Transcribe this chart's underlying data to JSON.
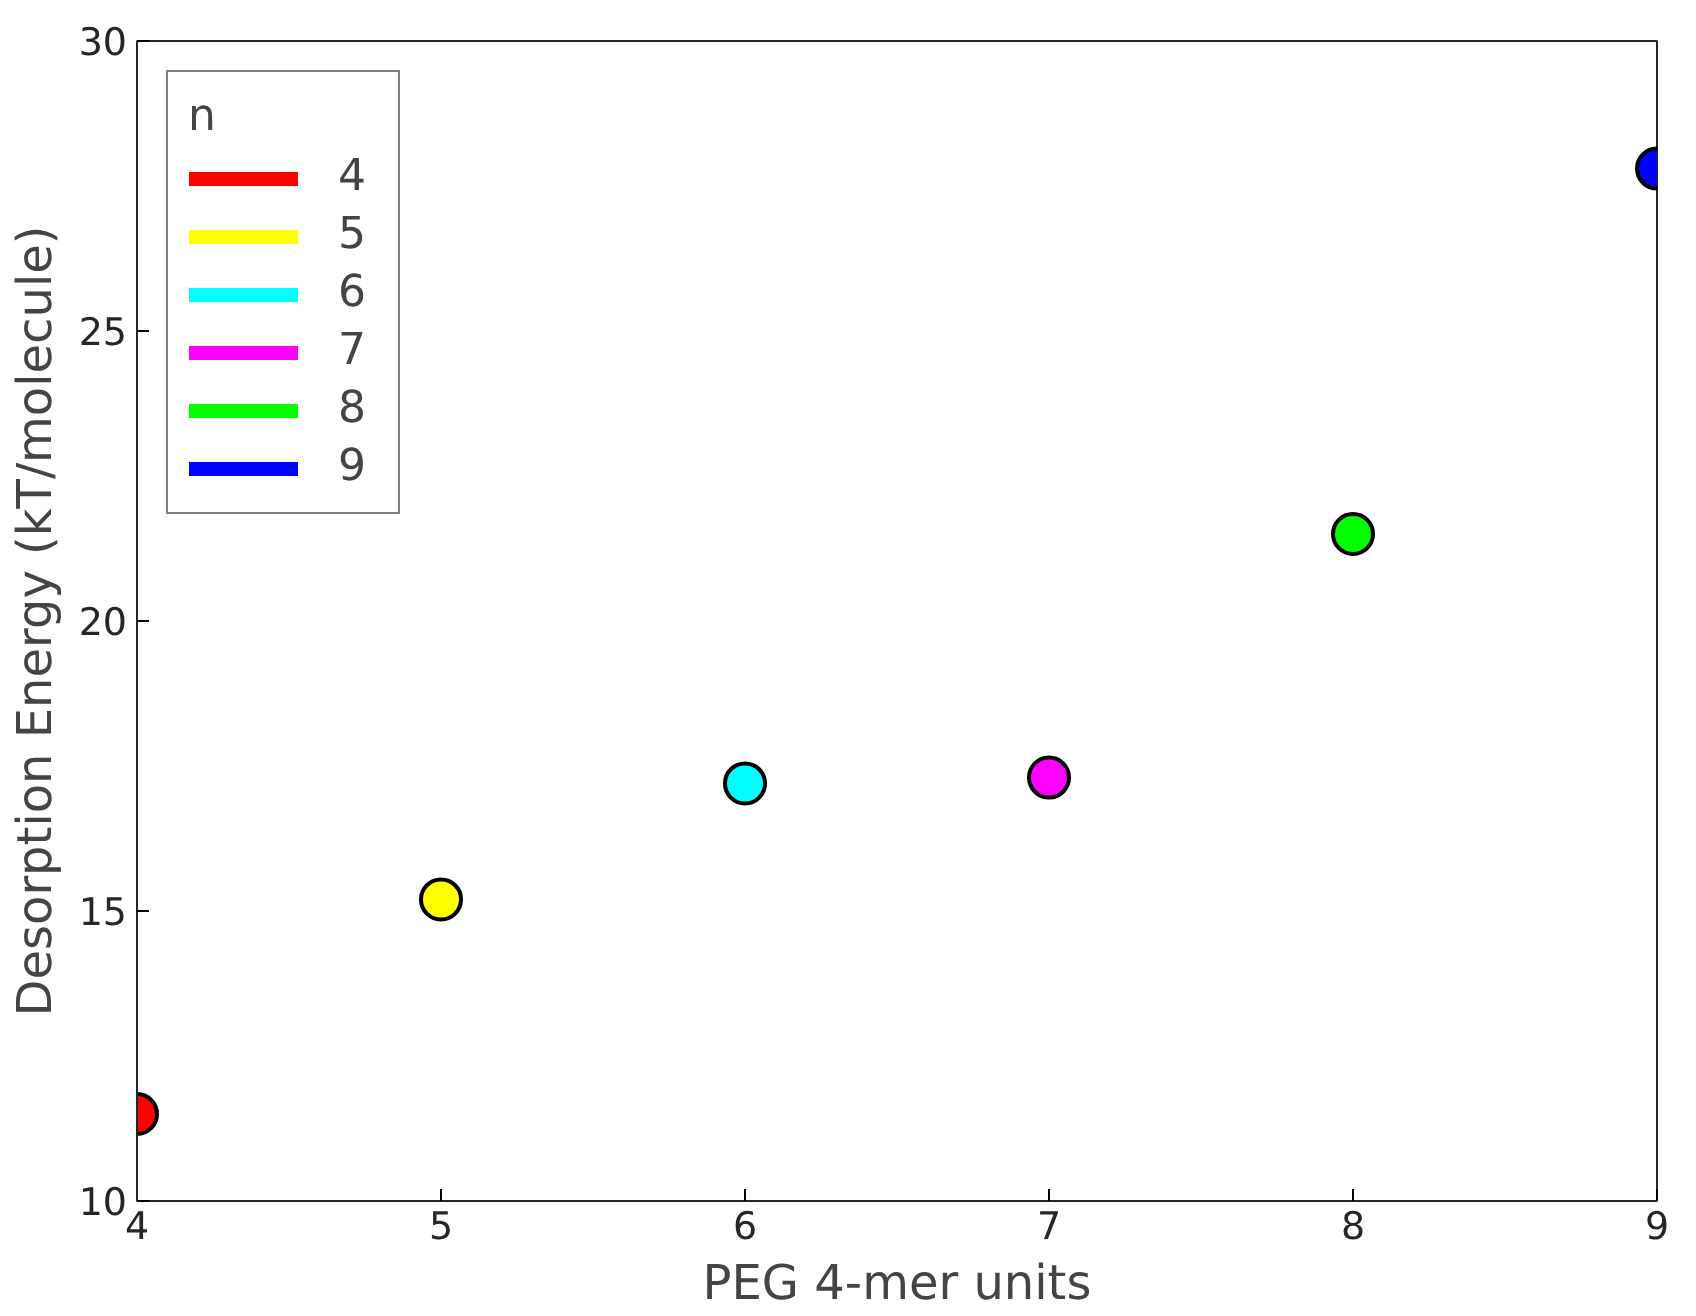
{
  "chart_data": {
    "type": "scatter",
    "xlabel": "PEG 4-mer units",
    "ylabel": "Desorption Energy (kT/molecule)",
    "legend_title": "n",
    "legend": "top left",
    "marker": "circle",
    "grid": false,
    "xlim": [
      4,
      9
    ],
    "xticks": [
      4,
      5,
      6,
      7,
      8,
      9
    ],
    "ylim": [
      10,
      30
    ],
    "yticks": [
      10,
      15,
      20,
      25,
      30
    ],
    "series": [
      {
        "name": "4",
        "color": "#ff0000",
        "x": [
          4
        ],
        "values": [
          11.5
        ]
      },
      {
        "name": "5",
        "color": "#ffff00",
        "x": [
          5
        ],
        "values": [
          15.2
        ]
      },
      {
        "name": "6",
        "color": "#00ffff",
        "x": [
          6
        ],
        "values": [
          17.2
        ]
      },
      {
        "name": "7",
        "color": "#ff00ff",
        "x": [
          7
        ],
        "values": [
          17.3
        ]
      },
      {
        "name": "8",
        "color": "#00ff00",
        "x": [
          8
        ],
        "values": [
          21.5
        ]
      },
      {
        "name": "9",
        "color": "#0000ff",
        "x": [
          9
        ],
        "values": [
          27.8
        ]
      }
    ]
  }
}
